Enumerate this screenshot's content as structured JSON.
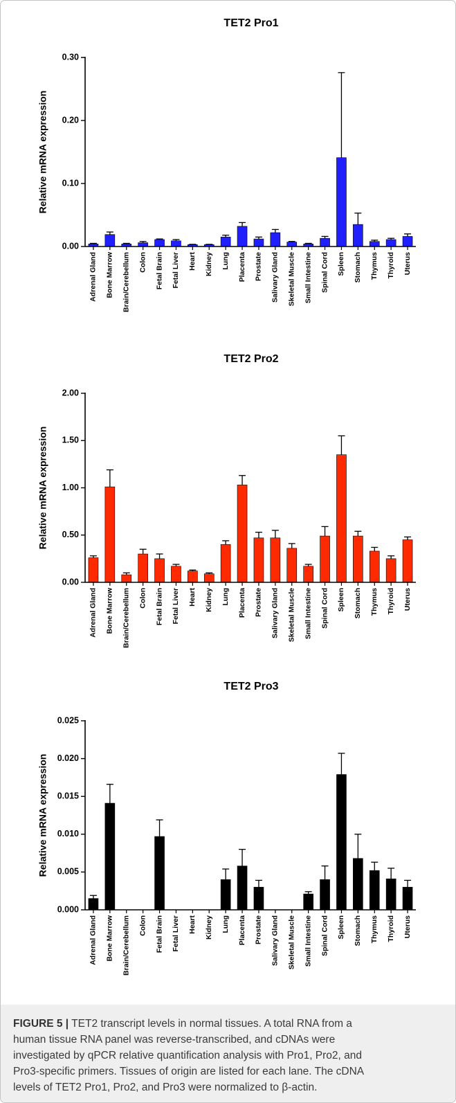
{
  "chart_data": [
    {
      "type": "bar",
      "title": "TET2 Pro1",
      "ylabel": "Relative mRNA expression",
      "ylim": [
        0,
        0.3
      ],
      "yticks": [
        0,
        0.1,
        0.2,
        0.3
      ],
      "ytick_labels": [
        "0.00",
        "0.10",
        "0.20",
        "0.30"
      ],
      "grid": false,
      "categories": [
        "Adrenal Gland",
        "Bone Marrow",
        "Brain/Cerebellum",
        "Colon",
        "Fetal Brain",
        "Fetal Liver",
        "Heart",
        "Kidney",
        "Lung",
        "Placenta",
        "Prostate",
        "Salivary Gland",
        "Skeletal Muscle",
        "Small Intestine",
        "Spinal Cord",
        "Spleen",
        "Stomach",
        "Thymus",
        "Thyroid",
        "Uterus"
      ],
      "series": [
        {
          "color": "#1f1fff",
          "values": [
            0.004,
            0.019,
            0.004,
            0.006,
            0.011,
            0.009,
            0.003,
            0.003,
            0.015,
            0.032,
            0.012,
            0.022,
            0.007,
            0.004,
            0.013,
            0.141,
            0.035,
            0.008,
            0.011,
            0.016
          ],
          "errors": [
            0.001,
            0.004,
            0.001,
            0.002,
            0.001,
            0.002,
            0.0005,
            0.0005,
            0.003,
            0.006,
            0.003,
            0.005,
            0.001,
            0.001,
            0.003,
            0.135,
            0.018,
            0.002,
            0.002,
            0.004
          ]
        }
      ]
    },
    {
      "type": "bar",
      "title": "TET2 Pro2",
      "ylabel": "Relative mRNA expression",
      "ylim": [
        0,
        2.0
      ],
      "yticks": [
        0,
        0.5,
        1.0,
        1.5,
        2.0
      ],
      "ytick_labels": [
        "0.00",
        "0.50",
        "1.00",
        "1.50",
        "2.00"
      ],
      "grid": false,
      "categories": [
        "Adrenal Gland",
        "Bone Marrow",
        "Brain/Cerebellum",
        "Colon",
        "Fetal Brain",
        "Fetal Liver",
        "Heart",
        "Kidney",
        "Lung",
        "Placenta",
        "Prostate",
        "Salivary Gland",
        "Skeletal Muscle",
        "Small Intestine",
        "Spinal Cord",
        "Spleen",
        "Stomach",
        "Thymus",
        "Thyroid",
        "Uterus"
      ],
      "series": [
        {
          "color": "#ff2a00",
          "values": [
            0.26,
            1.01,
            0.08,
            0.3,
            0.25,
            0.17,
            0.12,
            0.09,
            0.4,
            1.03,
            0.47,
            0.47,
            0.36,
            0.17,
            0.49,
            1.35,
            0.49,
            0.33,
            0.25,
            0.45
          ],
          "errors": [
            0.02,
            0.18,
            0.02,
            0.05,
            0.05,
            0.02,
            0.01,
            0.01,
            0.04,
            0.1,
            0.06,
            0.08,
            0.05,
            0.02,
            0.1,
            0.2,
            0.05,
            0.04,
            0.03,
            0.03
          ]
        }
      ]
    },
    {
      "type": "bar",
      "title": "TET2 Pro3",
      "ylabel": "Relative mRNA expression",
      "ylim": [
        0,
        0.025
      ],
      "yticks": [
        0,
        0.005,
        0.01,
        0.015,
        0.02,
        0.025
      ],
      "ytick_labels": [
        "0.000",
        "0.005",
        "0.010",
        "0.015",
        "0.020",
        "0.025"
      ],
      "grid": false,
      "categories": [
        "Adrenal Gland",
        "Bone Marrow",
        "Brain/Cerebellum",
        "Colon",
        "Fetal Brain",
        "Fetal Liver",
        "Heart",
        "Kidney",
        "Lung",
        "Placenta",
        "Prostate",
        "Salivary Gland",
        "Skeletal Muscle",
        "Small Intestine",
        "Spinal Cord",
        "Spleen",
        "Stomach",
        "Thymus",
        "Thyroid",
        "Uterus"
      ],
      "series": [
        {
          "color": "#000000",
          "values": [
            0.0015,
            0.0141,
            0,
            0,
            0.0097,
            0,
            0,
            0,
            0.004,
            0.0058,
            0.003,
            0,
            0,
            0.0021,
            0.004,
            0.0179,
            0.0068,
            0.0052,
            0.0041,
            0.003
          ],
          "errors": [
            0.0004,
            0.0025,
            0,
            0,
            0.0022,
            0,
            0,
            0,
            0.0014,
            0.0022,
            0.0009,
            0,
            0,
            0.0003,
            0.0018,
            0.0028,
            0.0032,
            0.0011,
            0.0014,
            0.0009
          ]
        }
      ]
    }
  ],
  "caption": {
    "label": "FIGURE 5 |",
    "lines": [
      "TET2 transcript levels in normal tissues. A total RNA from a",
      "human tissue RNA panel was reverse-transcribed, and cDNAs were",
      "investigated by qPCR relative quantification analysis with Pro1, Pro2, and",
      "Pro3-specific primers. Tissues of origin are listed for each lane. The cDNA",
      "levels of TET2 Pro1, Pro2, and Pro3 were normalized to β-actin."
    ]
  }
}
